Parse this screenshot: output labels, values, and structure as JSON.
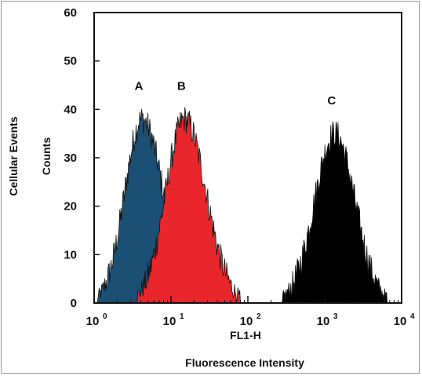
{
  "chart_data": {
    "type": "area",
    "xscale": "log",
    "xlim": [
      1,
      10000
    ],
    "ylim": [
      0,
      60
    ],
    "yticks": [
      "0",
      "10",
      "20",
      "30",
      "40",
      "50",
      "60"
    ],
    "xticks": [
      {
        "base": "10",
        "exp": "0"
      },
      {
        "base": "10",
        "exp": "1"
      },
      {
        "base": "10",
        "exp": "2"
      },
      {
        "base": "10",
        "exp": "3"
      },
      {
        "base": "10",
        "exp": "4"
      }
    ],
    "xlabel": "FL1-H",
    "xlabel2": "Fluorescence Intensity",
    "ylabel": "Counts",
    "ylabel2": "Cellular Events",
    "series": [
      {
        "name": "A",
        "color": "#1c4f74",
        "peak_x": 4.2,
        "peak_y": 38,
        "x_range": [
          1.1,
          22
        ]
      },
      {
        "name": "B",
        "color": "#e8262b",
        "peak_x": 15,
        "peak_y": 38,
        "x_range": [
          3.5,
          80
        ]
      },
      {
        "name": "C",
        "color": "#000000",
        "peak_x": 1350,
        "peak_y": 35,
        "x_range": [
          280,
          6500
        ]
      }
    ],
    "grid": false
  }
}
